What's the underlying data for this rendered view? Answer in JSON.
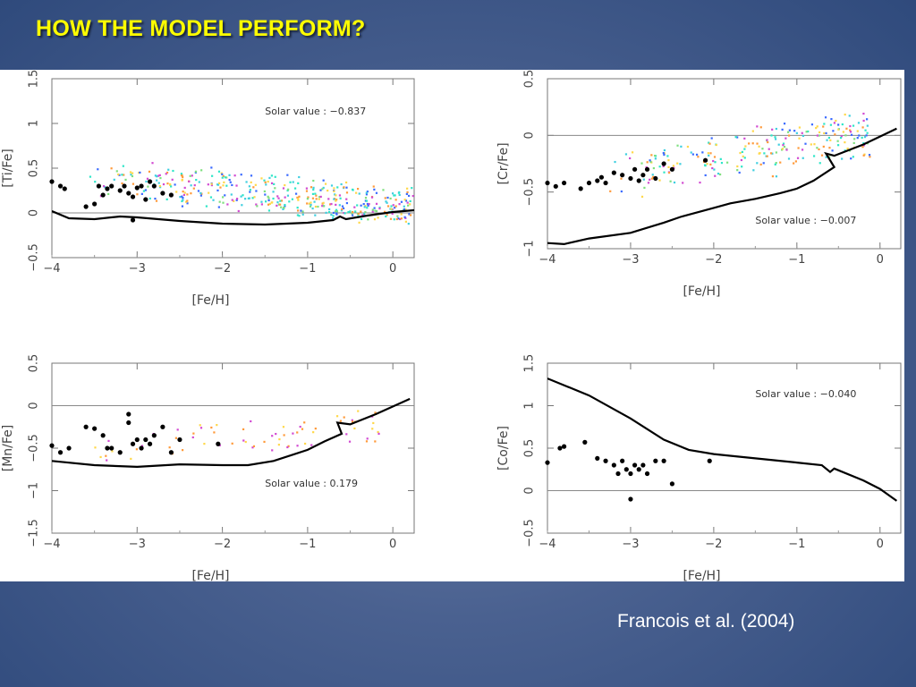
{
  "slide": {
    "title": "HOW THE MODEL PERFORM?",
    "citation": "Francois et al. (2004)"
  },
  "chart_data": [
    {
      "type": "scatter",
      "xlabel": "[Fe/H]",
      "ylabel": "[Ti/Fe]",
      "xlim": [
        -4,
        0.25
      ],
      "ylim": [
        -0.5,
        1.5
      ],
      "xticks": [
        -4,
        -3,
        -2,
        -1,
        0
      ],
      "xtick_labels": [
        "−4",
        "−3",
        "−2",
        "−1",
        "0"
      ],
      "yticks": [
        -0.5,
        0,
        0.5,
        1,
        1.5
      ],
      "ytick_labels": [
        "−0.5",
        "0",
        "0.5",
        "1",
        "1.5"
      ],
      "reference_line": 0,
      "annotation": "Solar value : −0.837",
      "annotation_pos": [
        -1.5,
        1.1
      ],
      "model": [
        [
          -4,
          0.02
        ],
        [
          -3.8,
          -0.06
        ],
        [
          -3.5,
          -0.07
        ],
        [
          -3.2,
          -0.04
        ],
        [
          -3.0,
          -0.05
        ],
        [
          -2.5,
          -0.09
        ],
        [
          -2.0,
          -0.12
        ],
        [
          -1.5,
          -0.13
        ],
        [
          -1.0,
          -0.11
        ],
        [
          -0.7,
          -0.08
        ],
        [
          -0.62,
          -0.04
        ],
        [
          -0.55,
          -0.07
        ],
        [
          -0.3,
          -0.03
        ],
        [
          0,
          0.01
        ],
        [
          0.25,
          0.03
        ]
      ],
      "points": [
        [
          -4,
          0.35
        ],
        [
          -3.9,
          0.3
        ],
        [
          -3.85,
          0.27
        ],
        [
          -3.6,
          0.07
        ],
        [
          -3.5,
          0.1
        ],
        [
          -3.45,
          0.3
        ],
        [
          -3.4,
          0.2
        ],
        [
          -3.35,
          0.27
        ],
        [
          -3.3,
          0.3
        ],
        [
          -3.2,
          0.25
        ],
        [
          -3.15,
          0.3
        ],
        [
          -3.1,
          0.22
        ],
        [
          -3.05,
          0.18
        ],
        [
          -3.0,
          0.28
        ],
        [
          -2.95,
          0.3
        ],
        [
          -2.9,
          0.15
        ],
        [
          -2.85,
          0.35
        ],
        [
          -2.8,
          0.3
        ],
        [
          -2.7,
          0.22
        ],
        [
          -3.05,
          -0.08
        ],
        [
          -2.6,
          0.2
        ]
      ],
      "scatter_colors": [
        "#2ee6c8",
        "#7fe07f",
        "#3fcfe0",
        "#ffd84a",
        "#d24ad2",
        "#3a6aff",
        "#ff9a3a"
      ],
      "scatter_cloud": {
        "x_range": [
          -3.6,
          0.25
        ],
        "y_trend": [
          0.42,
          0.05
        ],
        "count": 420
      }
    },
    {
      "type": "scatter",
      "xlabel": "[Fe/H]",
      "ylabel": "[Cr/Fe]",
      "xlim": [
        -4,
        0.25
      ],
      "ylim": [
        -1,
        0.5
      ],
      "xticks": [
        -4,
        -3,
        -2,
        -1,
        0
      ],
      "xtick_labels": [
        "−4",
        "−3",
        "−2",
        "−1",
        "0"
      ],
      "yticks": [
        -1,
        -0.5,
        0,
        0.5
      ],
      "ytick_labels": [
        "−1",
        "−0.5",
        "0",
        "0.5"
      ],
      "reference_line": 0,
      "annotation": "Solar value : −0.007",
      "annotation_pos": [
        -1.5,
        -0.78
      ],
      "model": [
        [
          -4,
          -0.95
        ],
        [
          -3.8,
          -0.96
        ],
        [
          -3.5,
          -0.91
        ],
        [
          -3.0,
          -0.86
        ],
        [
          -2.6,
          -0.77
        ],
        [
          -2.4,
          -0.72
        ],
        [
          -2.0,
          -0.64
        ],
        [
          -1.8,
          -0.6
        ],
        [
          -1.5,
          -0.56
        ],
        [
          -1.2,
          -0.51
        ],
        [
          -1.0,
          -0.47
        ],
        [
          -0.8,
          -0.4
        ],
        [
          -0.55,
          -0.28
        ],
        [
          -0.65,
          -0.16
        ],
        [
          -0.55,
          -0.18
        ],
        [
          -0.2,
          -0.08
        ],
        [
          0.2,
          0.06
        ]
      ],
      "points": [
        [
          -4,
          -0.42
        ],
        [
          -3.9,
          -0.45
        ],
        [
          -3.8,
          -0.42
        ],
        [
          -3.6,
          -0.47
        ],
        [
          -3.5,
          -0.42
        ],
        [
          -3.4,
          -0.4
        ],
        [
          -3.35,
          -0.37
        ],
        [
          -3.3,
          -0.42
        ],
        [
          -3.2,
          -0.33
        ],
        [
          -3.1,
          -0.35
        ],
        [
          -3.0,
          -0.38
        ],
        [
          -2.95,
          -0.3
        ],
        [
          -2.9,
          -0.4
        ],
        [
          -2.85,
          -0.35
        ],
        [
          -2.8,
          -0.3
        ],
        [
          -2.7,
          -0.38
        ],
        [
          -2.6,
          -0.25
        ],
        [
          -2.5,
          -0.3
        ],
        [
          -2.1,
          -0.22
        ]
      ],
      "scatter_colors": [
        "#2ee6c8",
        "#7fe07f",
        "#3fcfe0",
        "#ffd84a",
        "#d24ad2",
        "#3a6aff",
        "#ff9a3a"
      ],
      "scatter_cloud": {
        "x_range": [
          -3.3,
          -0.1
        ],
        "y_trend": [
          -0.38,
          0.02
        ],
        "count": 240
      }
    },
    {
      "type": "scatter",
      "xlabel": "[Fe/H]",
      "ylabel": "[Mn/Fe]",
      "xlim": [
        -4,
        0.25
      ],
      "ylim": [
        -1.5,
        0.5
      ],
      "xticks": [
        -4,
        -3,
        -2,
        -1,
        0
      ],
      "xtick_labels": [
        "−4",
        "−3",
        "−2",
        "−1",
        "0"
      ],
      "yticks": [
        -1.5,
        -1,
        -0.5,
        0,
        0.5
      ],
      "ytick_labels": [
        "−1.5",
        "−1",
        "−0.5",
        "0",
        "0.5"
      ],
      "reference_line": 0,
      "annotation": "Solar value :  0.179",
      "annotation_pos": [
        -1.5,
        -0.95
      ],
      "model": [
        [
          -4,
          -0.65
        ],
        [
          -3.5,
          -0.7
        ],
        [
          -3.0,
          -0.72
        ],
        [
          -2.5,
          -0.69
        ],
        [
          -2.0,
          -0.7
        ],
        [
          -1.7,
          -0.7
        ],
        [
          -1.4,
          -0.65
        ],
        [
          -1.0,
          -0.52
        ],
        [
          -0.8,
          -0.42
        ],
        [
          -0.6,
          -0.33
        ],
        [
          -0.65,
          -0.2
        ],
        [
          -0.5,
          -0.22
        ],
        [
          -0.2,
          -0.1
        ],
        [
          0.2,
          0.08
        ]
      ],
      "points": [
        [
          -4,
          -0.47
        ],
        [
          -3.9,
          -0.55
        ],
        [
          -3.8,
          -0.5
        ],
        [
          -3.6,
          -0.25
        ],
        [
          -3.5,
          -0.27
        ],
        [
          -3.4,
          -0.35
        ],
        [
          -3.35,
          -0.5
        ],
        [
          -3.3,
          -0.5
        ],
        [
          -3.2,
          -0.55
        ],
        [
          -3.1,
          -0.2
        ],
        [
          -3.1,
          -0.1
        ],
        [
          -3.05,
          -0.45
        ],
        [
          -3.0,
          -0.4
        ],
        [
          -2.95,
          -0.5
        ],
        [
          -2.9,
          -0.4
        ],
        [
          -2.85,
          -0.45
        ],
        [
          -2.8,
          -0.35
        ],
        [
          -2.7,
          -0.25
        ],
        [
          -2.6,
          -0.55
        ],
        [
          -2.5,
          -0.4
        ],
        [
          -2.05,
          -0.45
        ]
      ],
      "scatter_colors": [
        "#ffd84a",
        "#ff9a3a",
        "#d24ad2"
      ],
      "scatter_cloud": {
        "x_range": [
          -3.6,
          -0.1
        ],
        "y_trend": [
          -0.55,
          -0.25
        ],
        "count": 70
      }
    },
    {
      "type": "scatter",
      "xlabel": "[Fe/H]",
      "ylabel": "[Co/Fe]",
      "xlim": [
        -4,
        0.25
      ],
      "ylim": [
        -0.5,
        1.5
      ],
      "xticks": [
        -4,
        -3,
        -2,
        -1,
        0
      ],
      "xtick_labels": [
        "−4",
        "−3",
        "−2",
        "−1",
        "0"
      ],
      "yticks": [
        -0.5,
        0,
        0.5,
        1,
        1.5
      ],
      "ytick_labels": [
        "−0.5",
        "0",
        "0.5",
        "1",
        "1.5"
      ],
      "reference_line": 0,
      "annotation": "Solar value : −0.040",
      "annotation_pos": [
        -1.5,
        1.1
      ],
      "model": [
        [
          -4,
          1.32
        ],
        [
          -3.5,
          1.12
        ],
        [
          -3.0,
          0.85
        ],
        [
          -2.6,
          0.6
        ],
        [
          -2.3,
          0.48
        ],
        [
          -2.0,
          0.43
        ],
        [
          -1.5,
          0.38
        ],
        [
          -1.0,
          0.33
        ],
        [
          -0.7,
          0.3
        ],
        [
          -0.6,
          0.22
        ],
        [
          -0.55,
          0.26
        ],
        [
          -0.2,
          0.12
        ],
        [
          0,
          0.02
        ],
        [
          0.2,
          -0.12
        ]
      ],
      "points": [
        [
          -4,
          0.33
        ],
        [
          -3.85,
          0.5
        ],
        [
          -3.8,
          0.52
        ],
        [
          -3.55,
          0.57
        ],
        [
          -3.4,
          0.38
        ],
        [
          -3.3,
          0.35
        ],
        [
          -3.2,
          0.3
        ],
        [
          -3.15,
          0.2
        ],
        [
          -3.1,
          0.35
        ],
        [
          -3.05,
          0.25
        ],
        [
          -3.0,
          0.2
        ],
        [
          -2.95,
          0.3
        ],
        [
          -2.9,
          0.25
        ],
        [
          -2.85,
          0.3
        ],
        [
          -2.8,
          0.2
        ],
        [
          -2.7,
          0.35
        ],
        [
          -2.6,
          0.35
        ],
        [
          -2.5,
          0.08
        ],
        [
          -3.0,
          -0.1
        ],
        [
          -2.05,
          0.35
        ]
      ],
      "scatter_colors": [],
      "scatter_cloud": {
        "x_range": [
          -2,
          -1
        ],
        "y_trend": [
          0,
          0
        ],
        "count": 0
      }
    }
  ]
}
